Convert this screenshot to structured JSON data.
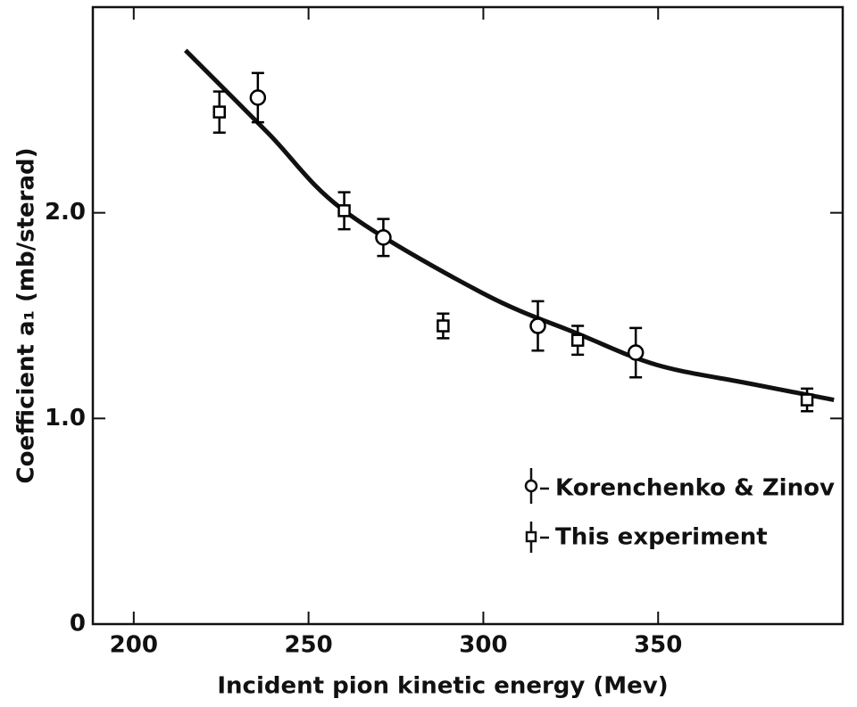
{
  "chart_data": {
    "type": "scatter",
    "xlabel": "Incident pion kinetic energy (Mev)",
    "ylabel": "Coefficient a₁ (mb/sterad)",
    "xlim": [
      188.3,
      402.8
    ],
    "xticks": [
      200,
      250,
      300,
      350
    ],
    "ylim": [
      0,
      3.0
    ],
    "yticks": [
      0,
      {
        "value": 1,
        "label": "1.0"
      },
      {
        "value": 2,
        "label": "2.0"
      }
    ],
    "series": [
      {
        "name": "Korenchenko & Zinov",
        "marker": "circle",
        "color": "#000000",
        "x": [
          235.5,
          271.4,
          315.6,
          343.6
        ],
        "values": [
          2.56,
          1.88,
          1.45,
          1.32
        ],
        "errors": [
          0.12,
          0.09,
          0.12,
          0.12
        ]
      },
      {
        "name": "This experiment",
        "marker": "square",
        "color": "#000000",
        "x": [
          224.5,
          260.2,
          288.5,
          327.0,
          392.6
        ],
        "values": [
          2.49,
          2.01,
          1.45,
          1.38,
          1.09
        ],
        "errors": [
          0.1,
          0.09,
          0.06,
          0.07,
          0.055
        ]
      }
    ],
    "curve": {
      "x": [
        214.8,
        238.3,
        260.2,
        299.7,
        327.3,
        349.7,
        376.0,
        400.3
      ],
      "values": [
        2.79,
        2.39,
        2.01,
        1.61,
        1.41,
        1.26,
        1.17,
        1.09
      ]
    }
  }
}
